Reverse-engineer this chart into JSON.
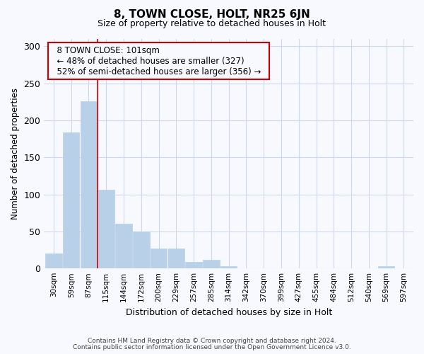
{
  "title": "8, TOWN CLOSE, HOLT, NR25 6JN",
  "subtitle": "Size of property relative to detached houses in Holt",
  "xlabel": "Distribution of detached houses by size in Holt",
  "ylabel": "Number of detached properties",
  "footnote1": "Contains HM Land Registry data © Crown copyright and database right 2024.",
  "footnote2": "Contains public sector information licensed under the Open Government Licence v3.0.",
  "annotation_line1": "8 TOWN CLOSE: 101sqm",
  "annotation_line2": "← 48% of detached houses are smaller (327)",
  "annotation_line3": "52% of semi-detached houses are larger (356) →",
  "bar_color": "#b8d0e8",
  "bar_edge_color": "#b8d0e8",
  "vline_color": "#cc0000",
  "background_color": "#f7f9ff",
  "grid_color": "#d0d8f0",
  "categories": [
    "30sqm",
    "59sqm",
    "87sqm",
    "115sqm",
    "144sqm",
    "172sqm",
    "200sqm",
    "229sqm",
    "257sqm",
    "285sqm",
    "314sqm",
    "342sqm",
    "370sqm",
    "399sqm",
    "427sqm",
    "455sqm",
    "484sqm",
    "512sqm",
    "540sqm",
    "569sqm",
    "597sqm"
  ],
  "values": [
    20,
    184,
    226,
    106,
    60,
    50,
    27,
    27,
    9,
    12,
    3,
    0,
    0,
    0,
    0,
    0,
    0,
    0,
    0,
    3,
    0
  ],
  "vline_x": 2.5,
  "ylim": [
    0,
    310
  ],
  "yticks": [
    0,
    50,
    100,
    150,
    200,
    250,
    300
  ]
}
